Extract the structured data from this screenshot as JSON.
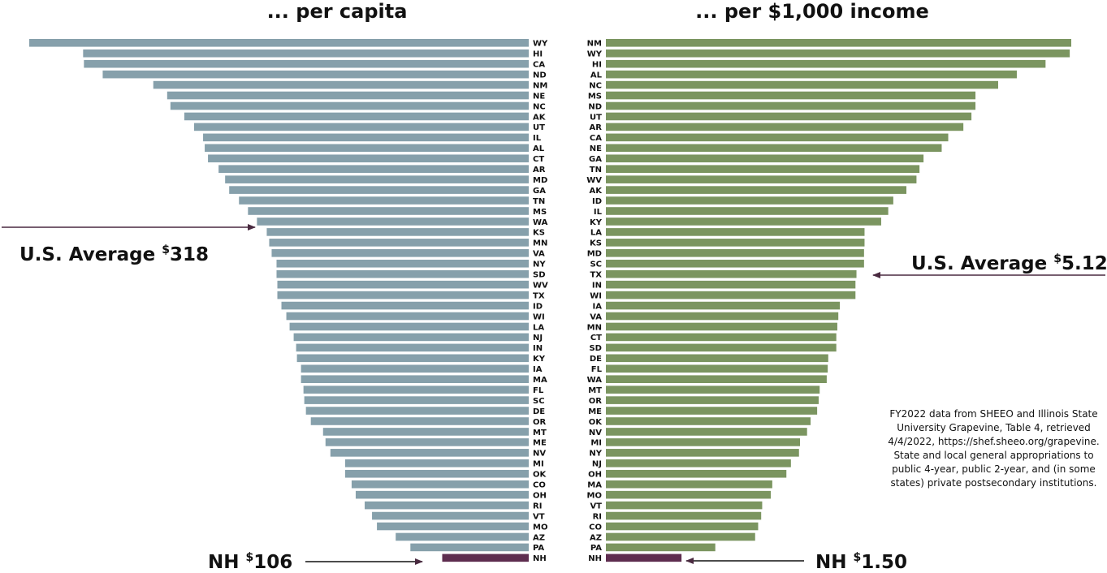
{
  "colors": {
    "left_bar": "#86a0ab",
    "right_bar": "#7b9560",
    "highlight": "#5e2d4f",
    "arrow": "#4a2a40",
    "text": "#111111"
  },
  "chart_data": [
    {
      "type": "bar",
      "orientation": "horizontal",
      "title": "... per capita",
      "average": {
        "label": "U.S. Average",
        "currency": "$",
        "value": "318"
      },
      "highlight": {
        "label": "NH",
        "currency": "$",
        "value": "106"
      },
      "categories": [
        "WY",
        "HI",
        "CA",
        "ND",
        "NM",
        "NE",
        "NC",
        "AK",
        "UT",
        "IL",
        "AL",
        "CT",
        "AR",
        "MD",
        "GA",
        "TN",
        "MS",
        "WA",
        "KS",
        "MN",
        "VA",
        "NY",
        "SD",
        "WV",
        "TX",
        "ID",
        "WI",
        "LA",
        "NJ",
        "IN",
        "KY",
        "IA",
        "MA",
        "FL",
        "SC",
        "DE",
        "OR",
        "MT",
        "ME",
        "NV",
        "MI",
        "OK",
        "CO",
        "OH",
        "RI",
        "VT",
        "MO",
        "AZ",
        "PA",
        "NH"
      ],
      "values": [
        612,
        546,
        545,
        522,
        460,
        443,
        439,
        422,
        410,
        399,
        397,
        393,
        380,
        372,
        367,
        355,
        344,
        333,
        321,
        318,
        315,
        309,
        309,
        308,
        308,
        303,
        297,
        293,
        288,
        285,
        284,
        279,
        279,
        276,
        275,
        273,
        267,
        252,
        249,
        243,
        225,
        225,
        217,
        212,
        201,
        192,
        186,
        163,
        145,
        106
      ]
    },
    {
      "type": "bar",
      "orientation": "horizontal",
      "title": "... per $1,000 income",
      "average": {
        "label": "U.S. Average",
        "currency": "$",
        "value": "5.12"
      },
      "highlight": {
        "label": "NH",
        "currency": "$",
        "value": "1.50"
      },
      "source_lines": [
        "FY2022 data from SHEEO and Illinois State",
        "University Grapevine, Table 4, retrieved",
        "4/4/2022, https://shef.sheeo.org/grapevine.",
        "State and local general appropriations to",
        "public 4-year, public 2-year, and (in some",
        "states) private postsecondary institutions."
      ],
      "categories": [
        "NM",
        "WY",
        "HI",
        "AL",
        "NC",
        "MS",
        "ND",
        "UT",
        "AR",
        "CA",
        "NE",
        "GA",
        "TN",
        "WV",
        "AK",
        "ID",
        "IL",
        "KY",
        "LA",
        "KS",
        "MD",
        "SC",
        "TX",
        "IN",
        "WI",
        "IA",
        "VA",
        "MN",
        "CT",
        "SD",
        "DE",
        "FL",
        "WA",
        "MT",
        "OR",
        "ME",
        "OK",
        "NV",
        "MI",
        "NY",
        "NJ",
        "OH",
        "MA",
        "MO",
        "VT",
        "RI",
        "CO",
        "AZ",
        "PA",
        "NH"
      ],
      "values": [
        9.23,
        9.2,
        8.72,
        8.15,
        7.78,
        7.33,
        7.33,
        7.25,
        7.09,
        6.79,
        6.66,
        6.3,
        6.22,
        6.16,
        5.96,
        5.7,
        5.6,
        5.46,
        5.13,
        5.13,
        5.12,
        5.12,
        4.97,
        4.95,
        4.95,
        4.64,
        4.61,
        4.59,
        4.57,
        4.57,
        4.41,
        4.4,
        4.38,
        4.24,
        4.22,
        4.19,
        4.06,
        3.99,
        3.85,
        3.83,
        3.67,
        3.58,
        3.3,
        3.27,
        3.1,
        3.08,
        3.02,
        2.96,
        2.17,
        1.5
      ]
    }
  ]
}
